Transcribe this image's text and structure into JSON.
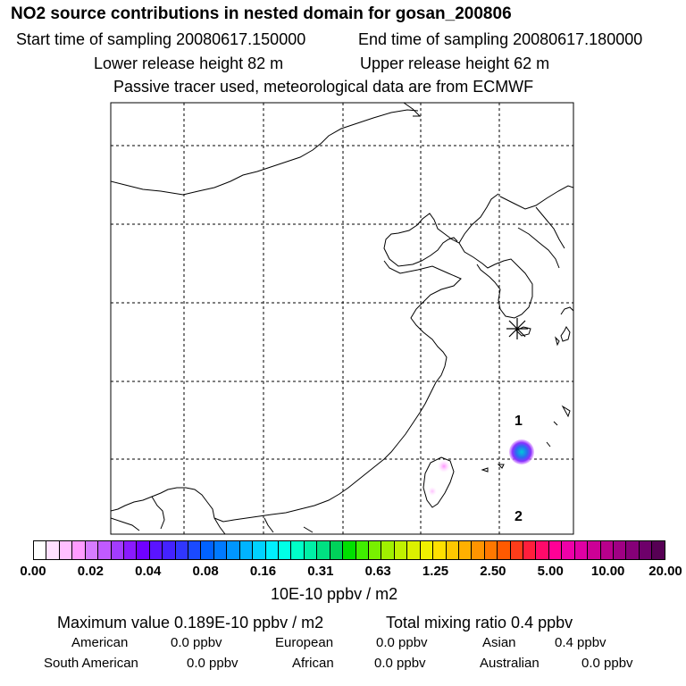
{
  "header": {
    "title": "NO2 source contributions in nested domain for gosan_200806",
    "start_label": "Start time of sampling 20080617.150000",
    "end_label": "End time of sampling 20080617.180000",
    "lower_label": "Lower release height   82 m",
    "upper_label": "Upper release height   62 m",
    "note": "Passive tracer used, meteorological data are from ECMWF"
  },
  "map": {
    "receptor_marker": "asterisk",
    "labels": {
      "point1": "1",
      "point2": "2"
    }
  },
  "legend": {
    "ticks": [
      "0.00",
      "0.02",
      "0.04",
      "0.08",
      "0.16",
      "0.31",
      "0.63",
      "1.25",
      "2.50",
      "5.00",
      "10.00",
      "20.00"
    ],
    "colors": [
      "#ffffff",
      "#ffe0ff",
      "#ffc0ff",
      "#ff9cff",
      "#d67cff",
      "#c05aff",
      "#a33cff",
      "#8a1aff",
      "#7000ff",
      "#5a14ff",
      "#4422ff",
      "#3036ff",
      "#1a4aff",
      "#0062ff",
      "#007aff",
      "#0096ff",
      "#00b4ff",
      "#00d2ff",
      "#00f0ff",
      "#00ffe6",
      "#00ffc8",
      "#00f0a6",
      "#00e082",
      "#00d25a",
      "#00e000",
      "#40ee00",
      "#78f000",
      "#a0f000",
      "#c0f000",
      "#dcf000",
      "#f0f000",
      "#ffe000",
      "#ffc800",
      "#ffb000",
      "#ff9400",
      "#ff7800",
      "#ff5a00",
      "#ff3c1a",
      "#ff1e3c",
      "#ff0a6a",
      "#ff0096",
      "#ee00a8",
      "#e000a4",
      "#cc0096",
      "#b8008c",
      "#a00084",
      "#860078",
      "#6e006a",
      "#560054"
    ],
    "unit": "10E-10 ppbv / m2"
  },
  "summary": {
    "max_line": "Maximum value  0.189E-10 ppbv / m2",
    "total_line": "Total mixing ratio        0.4 ppbv",
    "american": "American",
    "american_value": "0.0 ppbv",
    "european": "European",
    "european_value": "0.0 ppbv",
    "asian": "Asian",
    "asian_value": "0.4 ppbv",
    "south_american": "South American",
    "south_american_value": "0.0 ppbv",
    "african": "African",
    "african_value": "0.0 ppbv",
    "australian": "Australian",
    "australian_value": "0.0 ppbv"
  }
}
